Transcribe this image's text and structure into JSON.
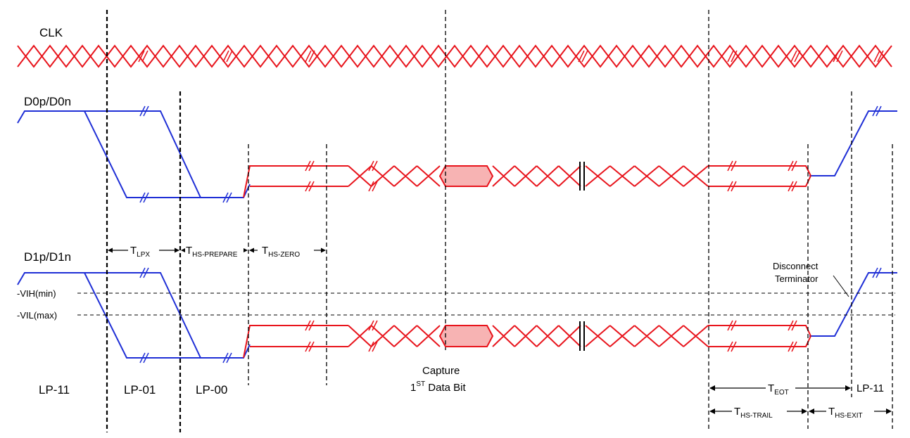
{
  "signals": {
    "clk": "CLK",
    "d0": "D0p/D0n",
    "d1": "D1p/D1n"
  },
  "thresholds": {
    "vih": "VIH(min)",
    "vil": "VIL(max)"
  },
  "states": {
    "lp11_start": "LP-11",
    "lp01": "LP-01",
    "lp00": "LP-00",
    "lp11_end": "LP-11"
  },
  "timings": {
    "tlpx": {
      "main": "T",
      "sub": "LPX"
    },
    "ths_prepare": {
      "main": "T",
      "sub": "HS-PREPARE"
    },
    "ths_zero": {
      "main": "T",
      "sub": "HS-ZERO"
    },
    "teot": {
      "main": "T",
      "sub": "EOT"
    },
    "ths_trail": {
      "main": "T",
      "sub": "HS-TRAIL"
    },
    "ths_exit": {
      "main": "T",
      "sub": "HS-EXIT"
    }
  },
  "annotations": {
    "capture_line1": "Capture",
    "capture_line2_sup_1": "1",
    "capture_line2_sup": "ST",
    "capture_line2_rest": " Data Bit",
    "disconnect_line1": "Disconnect",
    "disconnect_line2": "Terminator"
  },
  "colors": {
    "hs_signal": "#e8141c",
    "lp_signal": "#1f2fd6",
    "capture_fill": "#f7b3b3",
    "markers": "#000000"
  }
}
